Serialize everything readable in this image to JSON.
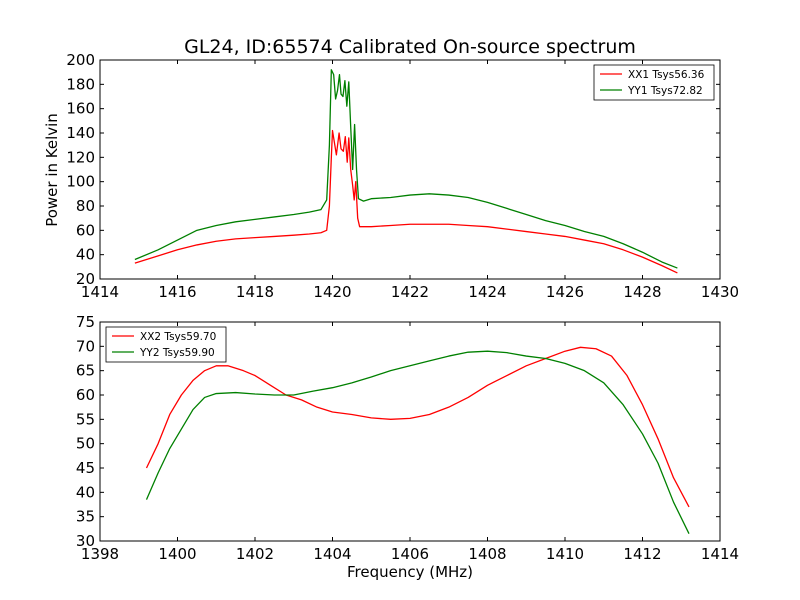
{
  "chart_data": [
    {
      "type": "line",
      "title": "GL24, ID:65574 Calibrated On-source spectrum",
      "xlabel": "",
      "ylabel": "Power in Kelvin",
      "xlim": [
        1414,
        1430
      ],
      "ylim": [
        20,
        200
      ],
      "xticks": [
        "1414",
        "1416",
        "1418",
        "1420",
        "1422",
        "1424",
        "1426",
        "1428",
        "1430"
      ],
      "yticks": [
        "20",
        "40",
        "60",
        "80",
        "100",
        "120",
        "140",
        "160",
        "180",
        "200"
      ],
      "grid": false,
      "legend_position": "top-right",
      "series": [
        {
          "name": "XX1 Tsys56.36",
          "color": "#ff0000",
          "points": [
            [
              1414.9,
              33
            ],
            [
              1415.5,
              39
            ],
            [
              1416.0,
              44
            ],
            [
              1416.5,
              48
            ],
            [
              1417.0,
              51
            ],
            [
              1417.5,
              53
            ],
            [
              1418.0,
              54
            ],
            [
              1418.5,
              55
            ],
            [
              1419.0,
              56
            ],
            [
              1419.4,
              57
            ],
            [
              1419.7,
              58
            ],
            [
              1419.85,
              60
            ],
            [
              1419.92,
              80
            ],
            [
              1419.97,
              120
            ],
            [
              1420.0,
              142
            ],
            [
              1420.05,
              132
            ],
            [
              1420.1,
              122
            ],
            [
              1420.17,
              140
            ],
            [
              1420.22,
              127
            ],
            [
              1420.28,
              125
            ],
            [
              1420.33,
              137
            ],
            [
              1420.38,
              116
            ],
            [
              1420.42,
              136
            ],
            [
              1420.47,
              110
            ],
            [
              1420.52,
              97
            ],
            [
              1420.56,
              85
            ],
            [
              1420.6,
              100
            ],
            [
              1420.65,
              70
            ],
            [
              1420.7,
              63
            ],
            [
              1421.0,
              63
            ],
            [
              1421.5,
              64
            ],
            [
              1422.0,
              65
            ],
            [
              1422.5,
              65
            ],
            [
              1423.0,
              65
            ],
            [
              1423.5,
              64
            ],
            [
              1424.0,
              63
            ],
            [
              1424.5,
              61
            ],
            [
              1425.0,
              59
            ],
            [
              1425.5,
              57
            ],
            [
              1426.0,
              55
            ],
            [
              1426.5,
              52
            ],
            [
              1427.0,
              49
            ],
            [
              1427.5,
              44
            ],
            [
              1428.0,
              38
            ],
            [
              1428.5,
              31
            ],
            [
              1428.9,
              25
            ]
          ]
        },
        {
          "name": "YY1 Tsys72.82",
          "color": "#008000",
          "points": [
            [
              1414.9,
              36
            ],
            [
              1415.5,
              44
            ],
            [
              1416.0,
              52
            ],
            [
              1416.5,
              60
            ],
            [
              1417.0,
              64
            ],
            [
              1417.5,
              67
            ],
            [
              1418.0,
              69
            ],
            [
              1418.5,
              71
            ],
            [
              1419.0,
              73
            ],
            [
              1419.4,
              75
            ],
            [
              1419.7,
              77
            ],
            [
              1419.85,
              85
            ],
            [
              1419.92,
              130
            ],
            [
              1419.97,
              192
            ],
            [
              1420.03,
              188
            ],
            [
              1420.08,
              168
            ],
            [
              1420.13,
              175
            ],
            [
              1420.18,
              188
            ],
            [
              1420.22,
              172
            ],
            [
              1420.27,
              170
            ],
            [
              1420.32,
              183
            ],
            [
              1420.37,
              162
            ],
            [
              1420.42,
              182
            ],
            [
              1420.47,
              145
            ],
            [
              1420.52,
              110
            ],
            [
              1420.57,
              147
            ],
            [
              1420.62,
              110
            ],
            [
              1420.67,
              86
            ],
            [
              1420.8,
              84
            ],
            [
              1421.0,
              86
            ],
            [
              1421.5,
              87
            ],
            [
              1422.0,
              89
            ],
            [
              1422.5,
              90
            ],
            [
              1423.0,
              89
            ],
            [
              1423.5,
              87
            ],
            [
              1424.0,
              83
            ],
            [
              1424.5,
              78
            ],
            [
              1425.0,
              73
            ],
            [
              1425.5,
              68
            ],
            [
              1426.0,
              64
            ],
            [
              1426.5,
              59
            ],
            [
              1427.0,
              55
            ],
            [
              1427.5,
              49
            ],
            [
              1428.0,
              42
            ],
            [
              1428.5,
              34
            ],
            [
              1428.9,
              29
            ]
          ]
        }
      ]
    },
    {
      "type": "line",
      "title": "",
      "xlabel": "Frequency (MHz)",
      "ylabel": "",
      "xlim": [
        1398,
        1414
      ],
      "ylim": [
        30,
        75
      ],
      "xticks": [
        "1398",
        "1400",
        "1402",
        "1404",
        "1406",
        "1408",
        "1410",
        "1412",
        "1414"
      ],
      "yticks": [
        "30",
        "35",
        "40",
        "45",
        "50",
        "55",
        "60",
        "65",
        "70",
        "75"
      ],
      "grid": false,
      "legend_position": "top-left",
      "series": [
        {
          "name": "XX2 Tsys59.70",
          "color": "#ff0000",
          "points": [
            [
              1399.2,
              45
            ],
            [
              1399.5,
              50
            ],
            [
              1399.8,
              56
            ],
            [
              1400.1,
              60
            ],
            [
              1400.4,
              63
            ],
            [
              1400.7,
              65
            ],
            [
              1401.0,
              66
            ],
            [
              1401.3,
              66
            ],
            [
              1401.7,
              65
            ],
            [
              1402.0,
              64
            ],
            [
              1402.4,
              62
            ],
            [
              1402.8,
              60
            ],
            [
              1403.2,
              59
            ],
            [
              1403.6,
              57.5
            ],
            [
              1404.0,
              56.5
            ],
            [
              1404.5,
              56
            ],
            [
              1405.0,
              55.3
            ],
            [
              1405.5,
              55
            ],
            [
              1406.0,
              55.2
            ],
            [
              1406.5,
              56
            ],
            [
              1407.0,
              57.5
            ],
            [
              1407.5,
              59.5
            ],
            [
              1408.0,
              62
            ],
            [
              1408.5,
              64
            ],
            [
              1409.0,
              66
            ],
            [
              1409.5,
              67.5
            ],
            [
              1410.0,
              69
            ],
            [
              1410.4,
              69.8
            ],
            [
              1410.8,
              69.5
            ],
            [
              1411.2,
              68
            ],
            [
              1411.6,
              64
            ],
            [
              1412.0,
              58
            ],
            [
              1412.4,
              51
            ],
            [
              1412.8,
              43
            ],
            [
              1413.2,
              37
            ]
          ]
        },
        {
          "name": "YY2 Tsys59.90",
          "color": "#008000",
          "points": [
            [
              1399.2,
              38.5
            ],
            [
              1399.5,
              44
            ],
            [
              1399.8,
              49
            ],
            [
              1400.1,
              53
            ],
            [
              1400.4,
              57
            ],
            [
              1400.7,
              59.5
            ],
            [
              1401.0,
              60.3
            ],
            [
              1401.5,
              60.5
            ],
            [
              1402.0,
              60.2
            ],
            [
              1402.5,
              60
            ],
            [
              1403.0,
              60
            ],
            [
              1403.5,
              60.8
            ],
            [
              1404.0,
              61.5
            ],
            [
              1404.5,
              62.5
            ],
            [
              1405.0,
              63.7
            ],
            [
              1405.5,
              65
            ],
            [
              1406.0,
              66
            ],
            [
              1406.5,
              67
            ],
            [
              1407.0,
              68
            ],
            [
              1407.5,
              68.8
            ],
            [
              1408.0,
              69
            ],
            [
              1408.5,
              68.7
            ],
            [
              1409.0,
              68
            ],
            [
              1409.5,
              67.5
            ],
            [
              1410.0,
              66.5
            ],
            [
              1410.5,
              65
            ],
            [
              1411.0,
              62.5
            ],
            [
              1411.5,
              58
            ],
            [
              1412.0,
              52
            ],
            [
              1412.4,
              46
            ],
            [
              1412.8,
              38
            ],
            [
              1413.2,
              31.5
            ]
          ]
        }
      ]
    }
  ]
}
